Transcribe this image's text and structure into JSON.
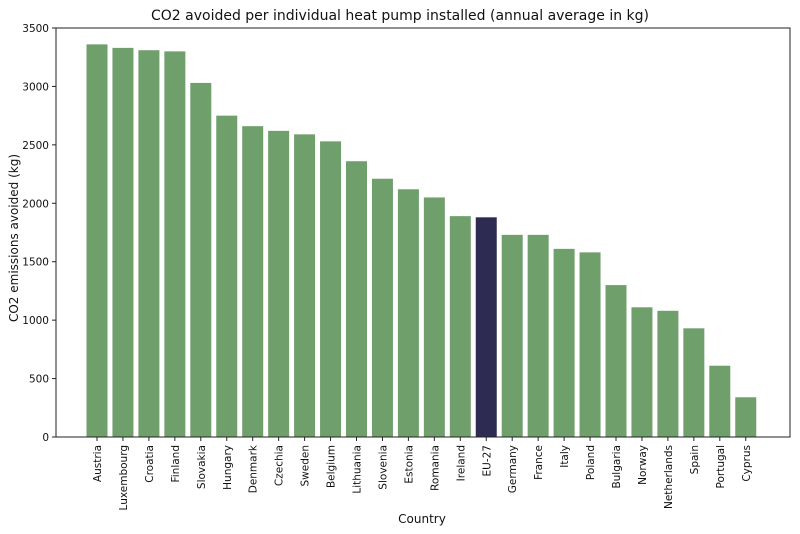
{
  "chart_data": {
    "type": "bar",
    "title": "CO2 avoided per individual heat pump installed (annual average in kg)",
    "xlabel": "Country",
    "ylabel": "CO2 emissions avoided (kg)",
    "ylim": [
      0,
      3500
    ],
    "yticks": [
      0,
      500,
      1000,
      1500,
      2000,
      2500,
      3000,
      3500
    ],
    "bar_color": "#6fa06c",
    "highlight_color": "#2e2b52",
    "highlight_category": "EU-27",
    "categories": [
      "Austria",
      "Luxembourg",
      "Croatia",
      "Finland",
      "Slovakia",
      "Hungary",
      "Denmark",
      "Czechia",
      "Sweden",
      "Belgium",
      "Lithuania",
      "Slovenia",
      "Estonia",
      "Romania",
      "Ireland",
      "EU-27",
      "Germany",
      "France",
      "Italy",
      "Poland",
      "Bulgaria",
      "Norway",
      "Netherlands",
      "Spain",
      "Portugal",
      "Cyprus"
    ],
    "values": [
      3360,
      3330,
      3310,
      3300,
      3030,
      2750,
      2660,
      2620,
      2590,
      2530,
      2360,
      2210,
      2120,
      2050,
      1890,
      1880,
      1730,
      1730,
      1610,
      1580,
      1300,
      1110,
      1080,
      930,
      610,
      340
    ]
  }
}
